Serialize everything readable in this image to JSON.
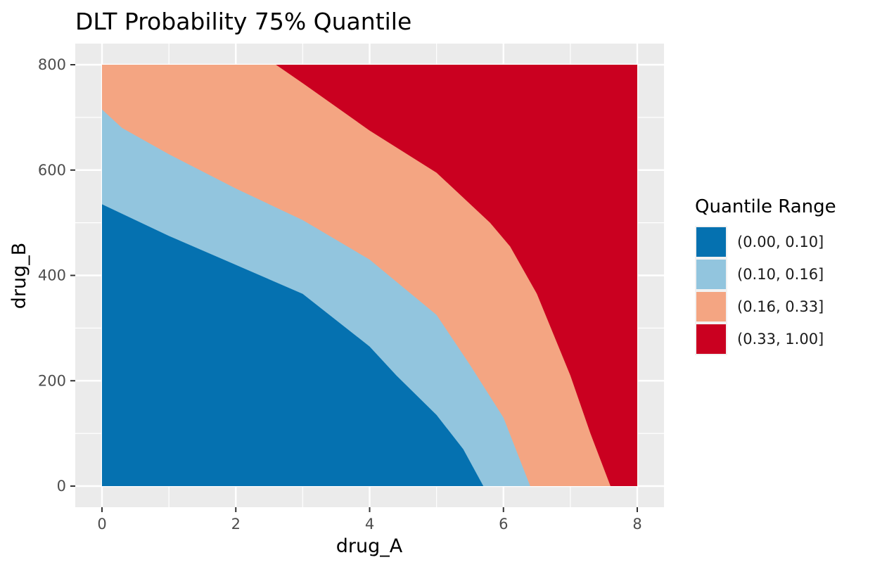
{
  "chart_data": {
    "type": "area",
    "title": "DLT Probability 75% Quantile",
    "xlabel": "drug_A",
    "ylabel": "drug_B",
    "xlim": [
      0,
      8
    ],
    "ylim": [
      0,
      800
    ],
    "x_ticks": [
      0,
      2,
      4,
      6,
      8
    ],
    "y_ticks": [
      0,
      200,
      400,
      600,
      800
    ],
    "grid": true,
    "legend": {
      "title": "Quantile Range",
      "position": "right"
    },
    "series": [
      {
        "name": "(0.00, 0.10]",
        "color": "#0571b0",
        "boundary": [
          [
            0,
            535
          ],
          [
            1,
            475
          ],
          [
            2,
            420
          ],
          [
            3,
            365
          ],
          [
            4,
            265
          ],
          [
            4.4,
            210
          ],
          [
            5,
            135
          ],
          [
            5.4,
            70
          ],
          [
            5.7,
            0
          ]
        ]
      },
      {
        "name": "(0.10, 0.16]",
        "color": "#92c5de",
        "boundary": [
          [
            0,
            715
          ],
          [
            0.3,
            680
          ],
          [
            1,
            630
          ],
          [
            2,
            565
          ],
          [
            3,
            505
          ],
          [
            4,
            430
          ],
          [
            5,
            325
          ],
          [
            5.5,
            230
          ],
          [
            6,
            130
          ],
          [
            6.4,
            0
          ]
        ]
      },
      {
        "name": "(0.16, 0.33]",
        "color": "#f4a582",
        "boundary": [
          [
            2.6,
            800
          ],
          [
            3,
            765
          ],
          [
            4,
            675
          ],
          [
            5,
            595
          ],
          [
            5.8,
            500
          ],
          [
            6.1,
            455
          ],
          [
            6.5,
            365
          ],
          [
            7,
            210
          ],
          [
            7.3,
            100
          ],
          [
            7.6,
            0
          ]
        ]
      },
      {
        "name": "(0.33, 1.00]",
        "color": "#ca0020",
        "boundary": []
      }
    ]
  }
}
